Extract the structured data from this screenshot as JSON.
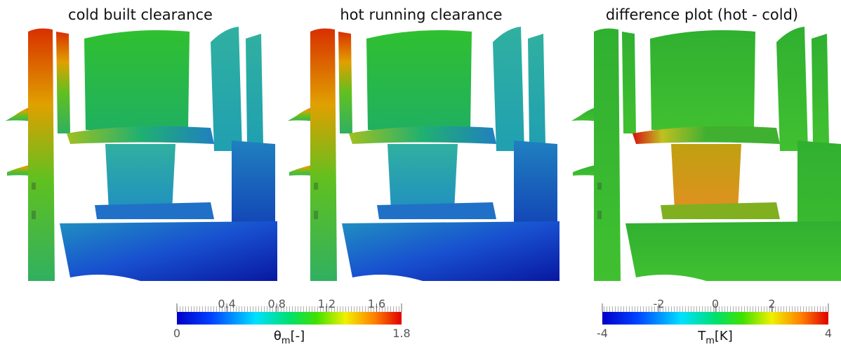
{
  "panels": [
    {
      "title": "cold built clearance"
    },
    {
      "title": "hot running clearance"
    },
    {
      "title": "difference plot (hot - cold)"
    }
  ],
  "colorbars": [
    {
      "lim": [
        0,
        1.8
      ],
      "ticks": [
        0,
        0.4,
        0.8,
        1.2,
        1.6,
        1.8
      ],
      "label": {
        "symbol": "θ",
        "subscript": "m",
        "unit": "[-]"
      }
    },
    {
      "lim": [
        -4,
        4
      ],
      "ticks": [
        -4,
        -2,
        0,
        2,
        4
      ],
      "label": {
        "symbol": "T",
        "subscript": "m",
        "unit": "[K]"
      }
    }
  ]
}
